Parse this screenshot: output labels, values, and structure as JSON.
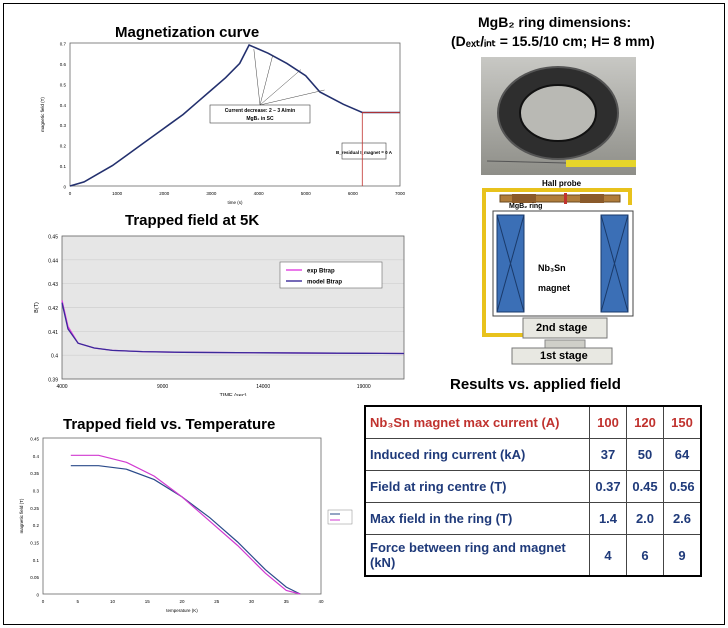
{
  "magnetization": {
    "title": "Magnetization curve",
    "ylabel": "magnetic field (T)",
    "xlabel": "time (s)",
    "yticks": [
      "0",
      "0.1",
      "0.2",
      "0.3",
      "0.4",
      "0.5",
      "0.6",
      "0.7"
    ],
    "xticks": [
      "0",
      "1000",
      "2000",
      "3000",
      "4000",
      "5000",
      "6000",
      "7000"
    ],
    "annotation1_line1": "Current decrease: 2 – 3 A/min",
    "annotation1_line2": "MgB₂ in SC",
    "annotation2": "B_residual I_magnet = 0 A"
  },
  "trapped5k": {
    "title": "Trapped field at 5K",
    "ylabel": "B(T)",
    "xlabel": "TIME (sec)",
    "yticks": [
      "0.39",
      "0.4",
      "0.41",
      "0.42",
      "0.43",
      "0.44",
      "0.45"
    ],
    "xticks": [
      "4000",
      "9000",
      "14000",
      "19000"
    ],
    "legend": [
      "exp Btrap",
      "model Btrap"
    ]
  },
  "trappedTemp": {
    "title": "Trapped field vs. Temperature",
    "ylabel": "magnetic field (T)",
    "xlabel": "temperature (K)",
    "yticks": [
      "0",
      "0.05",
      "0.1",
      "0.15",
      "0.2",
      "0.25",
      "0.3",
      "0.35",
      "0.4",
      "0.45"
    ],
    "xticks": [
      "0",
      "5",
      "10",
      "15",
      "20",
      "25",
      "30",
      "35",
      "40"
    ]
  },
  "ring": {
    "title_line1": "MgB₂ ring dimensions:",
    "title_line2": "(Dₑₓₜ/ᵢₙₜ = 15.5/10 cm; H= 8 mm)",
    "hall_probe": "Hall probe",
    "ring_label": "MgB₂ ring",
    "magnet_line1": "Nb₃Sn",
    "magnet_line2": "magnet",
    "stage2": "2nd stage",
    "stage1": "1st stage"
  },
  "results": {
    "title": "Results vs. applied field",
    "header": {
      "label": "Nb₃Sn magnet max current (A)",
      "values": [
        "100",
        "120",
        "150"
      ]
    },
    "rows": [
      {
        "label": "Induced ring current (kA)",
        "values": [
          "37",
          "50",
          "64"
        ]
      },
      {
        "label": "Field at ring centre (T)",
        "values": [
          "0.37",
          "0.45",
          "0.56"
        ]
      },
      {
        "label": "Max field in the ring   (T)",
        "values": [
          "1.4",
          "2.0",
          "2.6"
        ]
      },
      {
        "label": "Force   between   ring   and magnet (kN)",
        "values": [
          "4",
          "6",
          "9"
        ]
      }
    ]
  },
  "chart_data": [
    {
      "type": "line",
      "title": "Magnetization curve",
      "xlabel": "time (s)",
      "ylabel": "magnetic field (T)",
      "xlim": [
        0,
        7000
      ],
      "ylim": [
        0,
        0.7
      ],
      "series": [
        {
          "name": "",
          "x": [
            0,
            300,
            600,
            900,
            1200,
            1500,
            1800,
            2100,
            2400,
            2700,
            3000,
            3300,
            3600,
            3800,
            4200,
            4600,
            5000,
            5300,
            5800,
            6200,
            7000
          ],
          "y": [
            0,
            0.02,
            0.06,
            0.1,
            0.15,
            0.2,
            0.25,
            0.3,
            0.35,
            0.41,
            0.47,
            0.53,
            0.6,
            0.69,
            0.65,
            0.6,
            0.54,
            0.46,
            0.4,
            0.36,
            0.36
          ]
        }
      ]
    },
    {
      "type": "line",
      "title": "Trapped field at 5K",
      "xlabel": "TIME (sec)",
      "ylabel": "B(T)",
      "xlim": [
        4000,
        21000
      ],
      "ylim": [
        0.39,
        0.45
      ],
      "series": [
        {
          "name": "exp Btrap",
          "x": [
            4000,
            4300,
            4800,
            5600,
            6500,
            8000,
            10000,
            14000,
            19000,
            21000
          ],
          "y": [
            0.423,
            0.412,
            0.405,
            0.403,
            0.402,
            0.4015,
            0.4012,
            0.401,
            0.4008,
            0.4007
          ]
        },
        {
          "name": "model Btrap",
          "x": [
            4000,
            4300,
            4800,
            5600,
            6500,
            8000,
            10000,
            14000,
            19000,
            21000
          ],
          "y": [
            0.422,
            0.411,
            0.405,
            0.403,
            0.402,
            0.4015,
            0.4012,
            0.401,
            0.4008,
            0.4007
          ]
        }
      ]
    },
    {
      "type": "line",
      "title": "Trapped field vs. Temperature",
      "xlabel": "temperature (K)",
      "ylabel": "magnetic field (T)",
      "xlim": [
        0,
        40
      ],
      "ylim": [
        0,
        0.45
      ],
      "series": [
        {
          "name": "",
          "x": [
            4,
            8,
            12,
            16,
            20,
            24,
            28,
            32,
            35,
            37
          ],
          "y": [
            0.37,
            0.37,
            0.36,
            0.33,
            0.28,
            0.22,
            0.15,
            0.07,
            0.02,
            0
          ]
        },
        {
          "name": "",
          "x": [
            4,
            8,
            12,
            16,
            20,
            24,
            28,
            32,
            35,
            37
          ],
          "y": [
            0.4,
            0.4,
            0.38,
            0.34,
            0.28,
            0.21,
            0.14,
            0.06,
            0.01,
            0
          ]
        }
      ]
    }
  ]
}
